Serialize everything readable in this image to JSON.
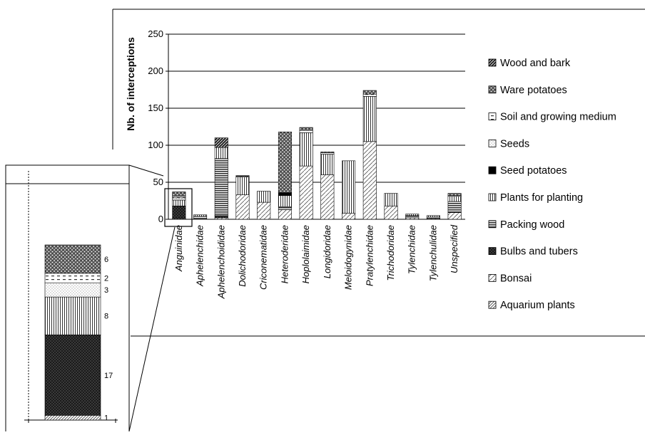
{
  "chart_data": {
    "type": "bar",
    "stacked": true,
    "title": "",
    "xlabel": "",
    "ylabel": "Nb. of interceptions",
    "ylim": [
      0,
      250
    ],
    "yticks": [
      0,
      50,
      100,
      150,
      200,
      250
    ],
    "grid": true,
    "legend_position": "right",
    "categories": [
      "Anguinidae",
      "Aphelenchidae",
      "Aphelenchoididae",
      "Dolichodoridae",
      "Criconematidae",
      "Heteroderidae",
      "Hoplolaimidae",
      "Longidoridae",
      "Meloidogynidae",
      "Pratylenchidae",
      "Trichodoridae",
      "Tylenchidae",
      "Tylenchulidae",
      "Unspecified"
    ],
    "series": [
      {
        "name": "Aquarium plants",
        "pattern": "diag-dense",
        "values": [
          1,
          0,
          0,
          0,
          0,
          0,
          0,
          0,
          0,
          0,
          0,
          0,
          0,
          0
        ]
      },
      {
        "name": "Bonsai",
        "pattern": "diag",
        "values": [
          0,
          0,
          2,
          33,
          23,
          13,
          72,
          60,
          8,
          105,
          18,
          2,
          1,
          9
        ]
      },
      {
        "name": "Bulbs and tubers",
        "pattern": "dark-cross",
        "values": [
          17,
          0,
          3,
          0,
          0,
          0,
          0,
          0,
          0,
          0,
          0,
          0,
          0,
          0
        ]
      },
      {
        "name": "Packing wood",
        "pattern": "hlines",
        "values": [
          0,
          4,
          77,
          0,
          0,
          4,
          0,
          0,
          0,
          0,
          0,
          3,
          2,
          15
        ]
      },
      {
        "name": "Plants for planting",
        "pattern": "vlines",
        "values": [
          8,
          2,
          15,
          24,
          15,
          15,
          45,
          28,
          71,
          61,
          17,
          2,
          2,
          7
        ]
      },
      {
        "name": "Seed potatoes",
        "pattern": "black",
        "values": [
          0,
          0,
          0,
          0,
          0,
          4,
          0,
          0,
          0,
          0,
          0,
          0,
          0,
          0
        ]
      },
      {
        "name": "Seeds",
        "pattern": "dots",
        "values": [
          3,
          0,
          0,
          0,
          0,
          0,
          0,
          0,
          0,
          0,
          0,
          0,
          0,
          0
        ]
      },
      {
        "name": "Soil and growing medium",
        "pattern": "dash",
        "values": [
          2,
          0,
          0,
          1,
          0,
          0,
          3,
          2,
          0,
          3,
          0,
          0,
          0,
          1
        ]
      },
      {
        "name": "Ware potatoes",
        "pattern": "speckle",
        "values": [
          6,
          0,
          0,
          1,
          0,
          82,
          4,
          1,
          0,
          5,
          0,
          0,
          0,
          3
        ]
      },
      {
        "name": "Wood and bark",
        "pattern": "dark-diag",
        "values": [
          0,
          0,
          13,
          0,
          0,
          0,
          0,
          0,
          0,
          0,
          0,
          0,
          0,
          0
        ]
      }
    ],
    "inset": {
      "category": "Anguinidae",
      "segments": [
        {
          "series": "Aquarium plants",
          "value": 1,
          "label": "1"
        },
        {
          "series": "Bulbs and tubers",
          "value": 17,
          "label": "17"
        },
        {
          "series": "Plants for planting",
          "value": 8,
          "label": "8"
        },
        {
          "series": "Seeds",
          "value": 3,
          "label": "3"
        },
        {
          "series": "Soil and growing medium",
          "value": 2,
          "label": "2"
        },
        {
          "series": "Ware potatoes",
          "value": 6,
          "label": "6"
        }
      ]
    }
  }
}
